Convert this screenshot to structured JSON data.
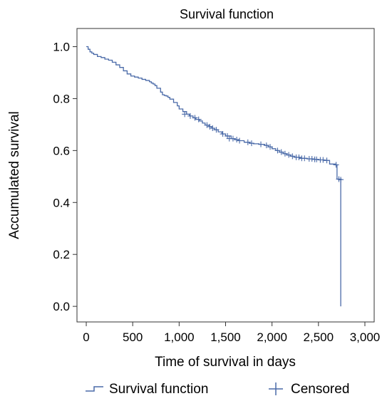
{
  "chart_data": {
    "type": "line",
    "title": "Survival function",
    "xlabel": "Time of survival in days",
    "ylabel": "Accumulated survival",
    "xlim": [
      -100,
      3100
    ],
    "ylim": [
      -0.06,
      1.07
    ],
    "x_ticks": [
      0,
      500,
      1000,
      1500,
      2000,
      2500,
      3000
    ],
    "x_tick_labels": [
      "0",
      "500",
      "1,000",
      "1,500",
      "2,000",
      "2,500",
      "3,000"
    ],
    "y_ticks": [
      0.0,
      0.2,
      0.4,
      0.6,
      0.8,
      1.0
    ],
    "y_tick_labels": [
      "0.0",
      "0.2",
      "0.4",
      "0.6",
      "0.8",
      "1.0"
    ],
    "grid": false,
    "legend_position": "bottom",
    "color": "#4a6aa8",
    "series": [
      {
        "name": "Survival function",
        "step_x": [
          0,
          20,
          40,
          60,
          80,
          120,
          160,
          200,
          240,
          280,
          320,
          360,
          400,
          440,
          480,
          520,
          560,
          600,
          640,
          680,
          700,
          720,
          740,
          760,
          800,
          820,
          840,
          860,
          880,
          900,
          940,
          980,
          1000,
          1040,
          1080,
          1110,
          1150,
          1180,
          1220,
          1250,
          1280,
          1320,
          1350,
          1380,
          1420,
          1460,
          1500,
          1560,
          1600,
          1640,
          1700,
          1760,
          1800,
          1860,
          1920,
          1960,
          2000,
          2040,
          2080,
          2120,
          2160,
          2200,
          2240,
          2300,
          2380,
          2440,
          2500,
          2560,
          2620,
          2680,
          2700,
          2720,
          2740
        ],
        "step_y": [
          1.0,
          0.99,
          0.98,
          0.975,
          0.97,
          0.962,
          0.958,
          0.952,
          0.948,
          0.94,
          0.93,
          0.92,
          0.907,
          0.895,
          0.887,
          0.883,
          0.879,
          0.874,
          0.87,
          0.865,
          0.86,
          0.856,
          0.85,
          0.84,
          0.825,
          0.815,
          0.812,
          0.81,
          0.805,
          0.798,
          0.785,
          0.772,
          0.76,
          0.75,
          0.74,
          0.733,
          0.726,
          0.72,
          0.714,
          0.706,
          0.698,
          0.692,
          0.686,
          0.68,
          0.672,
          0.664,
          0.656,
          0.646,
          0.642,
          0.638,
          0.632,
          0.628,
          0.626,
          0.624,
          0.62,
          0.614,
          0.607,
          0.6,
          0.594,
          0.588,
          0.583,
          0.578,
          0.574,
          0.57,
          0.568,
          0.566,
          0.564,
          0.562,
          0.548,
          0.545,
          0.49,
          0.488,
          0.0
        ]
      }
    ],
    "censored": {
      "name": "Censored",
      "points": [
        {
          "x": 1060,
          "y": 0.74
        },
        {
          "x": 1120,
          "y": 0.733
        },
        {
          "x": 1170,
          "y": 0.726
        },
        {
          "x": 1210,
          "y": 0.72
        },
        {
          "x": 1300,
          "y": 0.698
        },
        {
          "x": 1330,
          "y": 0.692
        },
        {
          "x": 1360,
          "y": 0.686
        },
        {
          "x": 1400,
          "y": 0.68
        },
        {
          "x": 1470,
          "y": 0.664
        },
        {
          "x": 1520,
          "y": 0.656
        },
        {
          "x": 1540,
          "y": 0.646
        },
        {
          "x": 1580,
          "y": 0.646
        },
        {
          "x": 1620,
          "y": 0.642
        },
        {
          "x": 1650,
          "y": 0.638
        },
        {
          "x": 1740,
          "y": 0.632
        },
        {
          "x": 1780,
          "y": 0.628
        },
        {
          "x": 1880,
          "y": 0.624
        },
        {
          "x": 1940,
          "y": 0.62
        },
        {
          "x": 1980,
          "y": 0.614
        },
        {
          "x": 2060,
          "y": 0.6
        },
        {
          "x": 2100,
          "y": 0.594
        },
        {
          "x": 2140,
          "y": 0.588
        },
        {
          "x": 2180,
          "y": 0.583
        },
        {
          "x": 2220,
          "y": 0.578
        },
        {
          "x": 2260,
          "y": 0.574
        },
        {
          "x": 2290,
          "y": 0.574
        },
        {
          "x": 2320,
          "y": 0.57
        },
        {
          "x": 2350,
          "y": 0.57
        },
        {
          "x": 2400,
          "y": 0.568
        },
        {
          "x": 2430,
          "y": 0.568
        },
        {
          "x": 2460,
          "y": 0.566
        },
        {
          "x": 2480,
          "y": 0.566
        },
        {
          "x": 2520,
          "y": 0.564
        },
        {
          "x": 2550,
          "y": 0.564
        },
        {
          "x": 2590,
          "y": 0.562
        },
        {
          "x": 2690,
          "y": 0.545
        },
        {
          "x": 2720,
          "y": 0.49
        },
        {
          "x": 2740,
          "y": 0.488
        }
      ]
    },
    "legend": [
      {
        "label": "Survival function",
        "marker": "step"
      },
      {
        "label": "Censored",
        "marker": "plus"
      }
    ]
  }
}
